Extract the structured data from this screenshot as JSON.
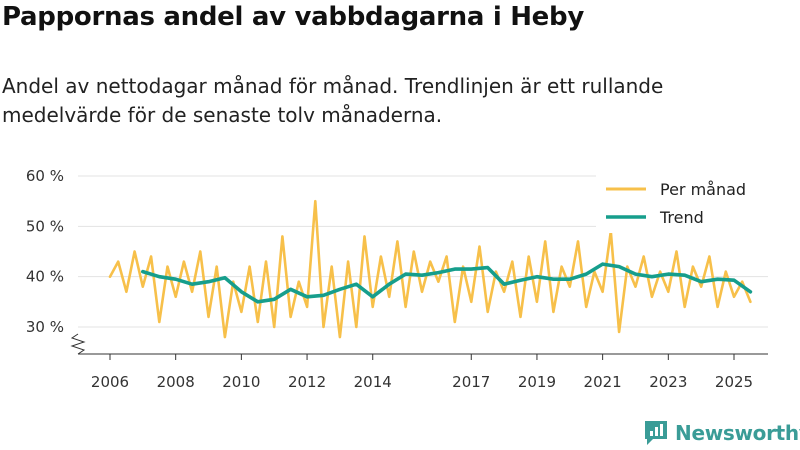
{
  "title": "Pappornas andel av vabbdagarna i Heby",
  "subtitle": "Andel av nettodagar månad för månad. Trendlinjen är ett rullande medelvärde för de senaste tolv månaderna.",
  "brand": {
    "name": "Newsworthy",
    "color": "#3a9c97"
  },
  "colors": {
    "monthly": "#f7c04a",
    "trend": "#169e8c",
    "grid": "#e3e3e3",
    "axis": "#333333"
  },
  "chart_data": {
    "type": "line",
    "x_unit": "year",
    "y_unit": "%",
    "ylim": [
      25,
      62
    ],
    "xlim": [
      2005.5,
      2026.0
    ],
    "y_ticks": [
      30,
      40,
      50,
      60
    ],
    "y_tick_labels": [
      "30 %",
      "40 %",
      "50 %",
      "60 %"
    ],
    "x_ticks": [
      2006,
      2008,
      2010,
      2012,
      2014,
      2017,
      2019,
      2021,
      2023,
      2025
    ],
    "x_tick_labels": [
      "2006",
      "2008",
      "2010",
      "2012",
      "2014",
      "2017",
      "2019",
      "2021",
      "2023",
      "2025"
    ],
    "grid": "horizontal",
    "legend_position": "top-right",
    "series": [
      {
        "name": "Per månad",
        "color": "#f7c04a",
        "x": [
          2006.0,
          2006.25,
          2006.5,
          2006.75,
          2007.0,
          2007.25,
          2007.5,
          2007.75,
          2008.0,
          2008.25,
          2008.5,
          2008.75,
          2009.0,
          2009.25,
          2009.5,
          2009.75,
          2010.0,
          2010.25,
          2010.5,
          2010.75,
          2011.0,
          2011.25,
          2011.5,
          2011.75,
          2012.0,
          2012.25,
          2012.5,
          2012.75,
          2013.0,
          2013.25,
          2013.5,
          2013.75,
          2014.0,
          2014.25,
          2014.5,
          2014.75,
          2015.0,
          2015.25,
          2015.5,
          2015.75,
          2016.0,
          2016.25,
          2016.5,
          2016.75,
          2017.0,
          2017.25,
          2017.5,
          2017.75,
          2018.0,
          2018.25,
          2018.5,
          2018.75,
          2019.0,
          2019.25,
          2019.5,
          2019.75,
          2020.0,
          2020.25,
          2020.5,
          2020.75,
          2021.0,
          2021.25,
          2021.5,
          2021.75,
          2022.0,
          2022.25,
          2022.5,
          2022.75,
          2023.0,
          2023.25,
          2023.5,
          2023.75,
          2024.0,
          2024.25,
          2024.5,
          2024.75,
          2025.0,
          2025.25,
          2025.5
        ],
        "values": [
          40,
          43,
          37,
          45,
          38,
          44,
          31,
          42,
          36,
          43,
          37,
          45,
          32,
          42,
          28,
          39,
          33,
          42,
          31,
          43,
          30,
          48,
          32,
          39,
          34,
          55,
          30,
          42,
          28,
          43,
          30,
          48,
          34,
          44,
          36,
          47,
          34,
          45,
          37,
          43,
          39,
          44,
          31,
          42,
          35,
          46,
          33,
          41,
          37,
          43,
          32,
          44,
          35,
          47,
          33,
          42,
          38,
          47,
          34,
          41,
          37,
          49,
          29,
          42,
          38,
          44,
          36,
          41,
          37,
          45,
          34,
          42,
          38,
          44,
          34,
          41,
          36,
          39,
          35
        ]
      },
      {
        "name": "Trend",
        "color": "#169e8c",
        "x": [
          2007.0,
          2007.5,
          2008.0,
          2008.5,
          2009.0,
          2009.5,
          2010.0,
          2010.5,
          2011.0,
          2011.5,
          2012.0,
          2012.5,
          2013.0,
          2013.5,
          2014.0,
          2014.5,
          2015.0,
          2015.5,
          2016.0,
          2016.5,
          2017.0,
          2017.5,
          2018.0,
          2018.5,
          2019.0,
          2019.5,
          2020.0,
          2020.5,
          2021.0,
          2021.5,
          2022.0,
          2022.5,
          2023.0,
          2023.5,
          2024.0,
          2024.5,
          2025.0,
          2025.5
        ],
        "values": [
          41.0,
          40.0,
          39.5,
          38.5,
          39.0,
          39.8,
          37.0,
          35.0,
          35.5,
          37.5,
          36.0,
          36.3,
          37.5,
          38.5,
          36.0,
          38.5,
          40.5,
          40.3,
          40.8,
          41.5,
          41.5,
          41.8,
          38.5,
          39.3,
          40.0,
          39.5,
          39.5,
          40.5,
          42.5,
          42.0,
          40.5,
          40.0,
          40.5,
          40.3,
          39.0,
          39.5,
          39.3,
          37.0
        ]
      }
    ]
  }
}
